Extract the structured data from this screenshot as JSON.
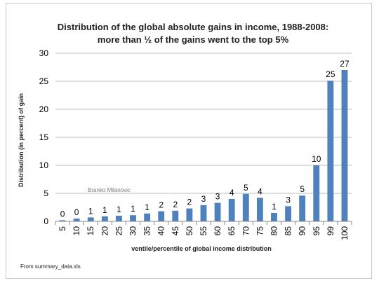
{
  "chart_data": {
    "type": "bar",
    "title_lines": [
      "Distribution of the global absolute gains in income, 1988-2008:",
      "more than ½ of the gains went to the top 5%"
    ],
    "xlabel": "ventile/percentile of global income distribution",
    "ylabel": "Distribution (in percent) of gain",
    "ylim": [
      0,
      30
    ],
    "yticks": [
      0,
      5,
      10,
      15,
      20,
      25,
      30
    ],
    "grid": "horizontal",
    "legend": "none",
    "color": "#4f81bd",
    "categories": [
      "5",
      "10",
      "15",
      "20",
      "25",
      "30",
      "35",
      "40",
      "45",
      "50",
      "55",
      "60",
      "65",
      "70",
      "75",
      "80",
      "85",
      "90",
      "95",
      "99",
      "100"
    ],
    "values": [
      0.2,
      0.5,
      0.7,
      0.9,
      1.0,
      1.1,
      1.4,
      1.8,
      1.9,
      2.3,
      2.9,
      3.3,
      4.0,
      4.9,
      4.2,
      1.5,
      2.7,
      4.6,
      10.0,
      25.1,
      27.0
    ],
    "data_labels": [
      "0",
      "0",
      "1",
      "1",
      "1",
      "1",
      "1",
      "2",
      "2",
      "2",
      "3",
      "3",
      "4",
      "5",
      "4",
      "1",
      "3",
      "5",
      "10",
      "25",
      "27"
    ],
    "annotation": "Branko Milanovic"
  },
  "footer": {
    "source": "From summary_data.xls"
  }
}
